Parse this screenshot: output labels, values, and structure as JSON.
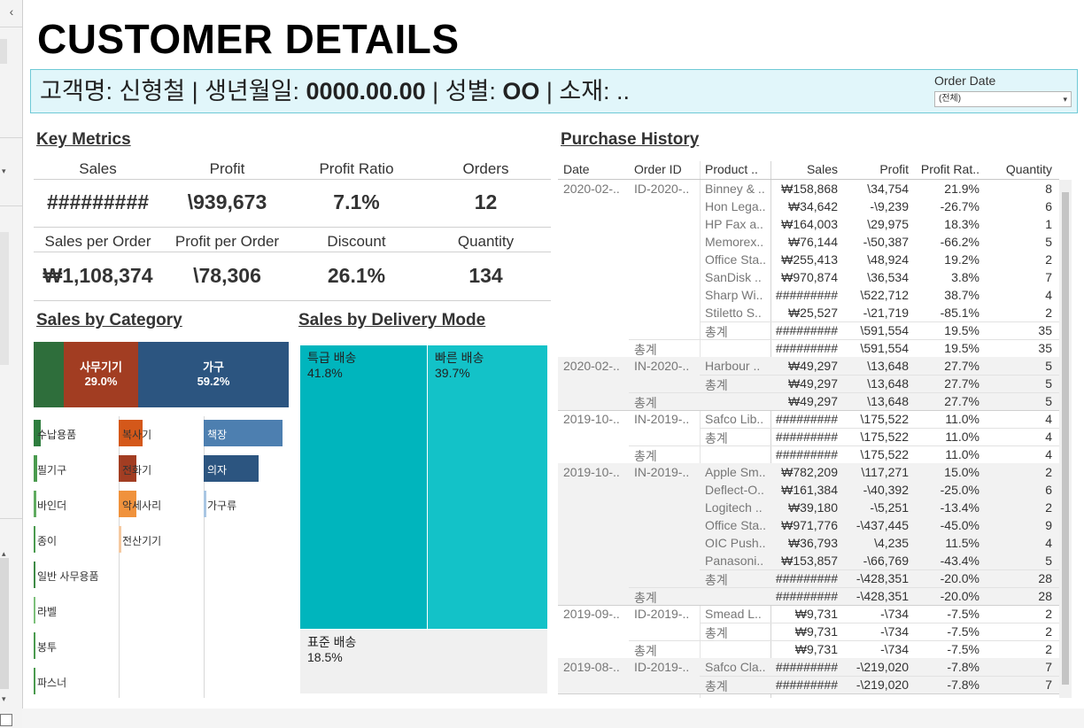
{
  "title": "CUSTOMER DETAILS",
  "customer": {
    "name_label": "고객명: ",
    "name_value": "신형철",
    "sep": " | ",
    "birth_label": "생년월일: ",
    "birth_value": "0000.00.00",
    "gender_label": "성별: ",
    "gender_value": "OO",
    "region_label": "소재: ..",
    "region_value": ""
  },
  "filter": {
    "label": "Order Date",
    "value": "(전체)",
    "arrow": "▾"
  },
  "key_metrics": {
    "heading": "Key Metrics",
    "row1": [
      {
        "label": "Sales",
        "value": "#########"
      },
      {
        "label": "Profit",
        "value": "\\939,673"
      },
      {
        "label": "Profit Ratio",
        "value": "7.1%"
      },
      {
        "label": "Orders",
        "value": "12"
      }
    ],
    "row2": [
      {
        "label": "Sales per Order",
        "value": "₩1,108,374"
      },
      {
        "label": "Profit per Order",
        "value": "\\78,306"
      },
      {
        "label": "Discount",
        "value": "26.1%"
      },
      {
        "label": "Quantity",
        "value": "134"
      }
    ]
  },
  "sales_by_category": {
    "heading": "Sales by Category",
    "colors": {
      "green": "#2e6e3b",
      "red": "#a23d22",
      "blue": "#2c5580"
    },
    "top": [
      {
        "name": "",
        "pct_label": "",
        "share": 0.118,
        "color": "#2e6e3b"
      },
      {
        "name": "사무기기",
        "pct_label": "29.0%",
        "share": 0.29,
        "color": "#a23d22"
      },
      {
        "name": "가구",
        "pct_label": "59.2%",
        "share": 0.592,
        "color": "#2c5580"
      }
    ],
    "columns": [
      [
        {
          "name": "수납용품",
          "share": 0.09,
          "color": "#2e7d3e"
        },
        {
          "name": "필기구",
          "share": 0.045,
          "color": "#4a9a4e"
        },
        {
          "name": "바인더",
          "share": 0.035,
          "color": "#5fab5f"
        },
        {
          "name": "종이",
          "share": 0.025,
          "color": "#4a9a4e"
        },
        {
          "name": "일반 사무용품",
          "share": 0.02,
          "color": "#3e8a45"
        },
        {
          "name": "라벨",
          "share": 0.015,
          "color": "#7cc07a"
        },
        {
          "name": "봉투",
          "share": 0.01,
          "color": "#4a9a4e"
        },
        {
          "name": "파스너",
          "share": 0.005,
          "color": "#4a9a4e"
        }
      ],
      [
        {
          "name": "복사기",
          "share": 0.3,
          "color": "#d4581a"
        },
        {
          "name": "전화기",
          "share": 0.22,
          "color": "#a23d22"
        },
        {
          "name": "악세사리",
          "share": 0.22,
          "color": "#f0923c"
        },
        {
          "name": "전산기기",
          "share": 0.03,
          "color": "#f5c9a0"
        }
      ],
      [
        {
          "name": "책장",
          "share": 0.98,
          "color": "#4d7fb0"
        },
        {
          "name": "의자",
          "share": 0.68,
          "color": "#2c5580"
        },
        {
          "name": "가구류",
          "share": 0.03,
          "color": "#a9c6e3"
        }
      ]
    ]
  },
  "sales_by_delivery": {
    "heading": "Sales by Delivery Mode",
    "modes": [
      {
        "name": "특급 배송",
        "pct": "41.8%",
        "color": "#00b5bd"
      },
      {
        "name": "빠른 배송",
        "pct": "39.7%",
        "color": "#13c2c8"
      },
      {
        "name": "표준 배송",
        "pct": "18.5%",
        "color": "#f0f0f0"
      }
    ]
  },
  "purchase_history": {
    "heading": "Purchase History",
    "columns": [
      "Date",
      "Order ID",
      "Product ..",
      "Sales",
      "Profit",
      "Profit Rat..",
      "Quantity"
    ],
    "total_label": "총계",
    "groups": [
      {
        "date": "2020-02-..",
        "order": "ID-2020-..",
        "rows": [
          [
            "Binney & ..",
            "₩158,868",
            "\\34,754",
            "21.9%",
            "8"
          ],
          [
            "Hon Lega..",
            "₩34,642",
            "-\\9,239",
            "-26.7%",
            "6"
          ],
          [
            "HP Fax a..",
            "₩164,003",
            "\\29,975",
            "18.3%",
            "1"
          ],
          [
            "Memorex..",
            "₩76,144",
            "-\\50,387",
            "-66.2%",
            "5"
          ],
          [
            "Office Sta..",
            "₩255,413",
            "\\48,924",
            "19.2%",
            "2"
          ],
          [
            "SanDisk ..",
            "₩970,874",
            "\\36,534",
            "3.8%",
            "7"
          ],
          [
            "Sharp Wi..",
            "#########",
            "\\522,712",
            "38.7%",
            "4"
          ],
          [
            "Stiletto S..",
            "₩25,527",
            "-\\21,719",
            "-85.1%",
            "2"
          ]
        ],
        "subtotal": [
          "#########",
          "\\591,554",
          "19.5%",
          "35"
        ],
        "total": [
          "#########",
          "\\591,554",
          "19.5%",
          "35"
        ]
      },
      {
        "date": "2020-02-..",
        "order": "IN-2020-..",
        "rows": [
          [
            "Harbour ..",
            "₩49,297",
            "\\13,648",
            "27.7%",
            "5"
          ]
        ],
        "subtotal": [
          "₩49,297",
          "\\13,648",
          "27.7%",
          "5"
        ],
        "total": [
          "₩49,297",
          "\\13,648",
          "27.7%",
          "5"
        ]
      },
      {
        "date": "2019-10-..",
        "order": "IN-2019-..",
        "rows": [
          [
            "Safco Lib..",
            "#########",
            "\\175,522",
            "11.0%",
            "4"
          ]
        ],
        "subtotal": [
          "#########",
          "\\175,522",
          "11.0%",
          "4"
        ],
        "total": [
          "#########",
          "\\175,522",
          "11.0%",
          "4"
        ]
      },
      {
        "date": "2019-10-..",
        "order": "IN-2019-..",
        "rows": [
          [
            "Apple Sm..",
            "₩782,209",
            "\\117,271",
            "15.0%",
            "2"
          ],
          [
            "Deflect-O..",
            "₩161,384",
            "-\\40,392",
            "-25.0%",
            "6"
          ],
          [
            "Logitech ..",
            "₩39,180",
            "-\\5,251",
            "-13.4%",
            "2"
          ],
          [
            "Office Sta..",
            "₩971,776",
            "-\\437,445",
            "-45.0%",
            "9"
          ],
          [
            "OIC Push..",
            "₩36,793",
            "\\4,235",
            "11.5%",
            "4"
          ],
          [
            "Panasoni..",
            "₩153,857",
            "-\\66,769",
            "-43.4%",
            "5"
          ]
        ],
        "subtotal": [
          "#########",
          "-\\428,351",
          "-20.0%",
          "28"
        ],
        "total": [
          "#########",
          "-\\428,351",
          "-20.0%",
          "28"
        ]
      },
      {
        "date": "2019-09-..",
        "order": "ID-2019-..",
        "rows": [
          [
            "Smead L..",
            "₩9,731",
            "-\\734",
            "-7.5%",
            "2"
          ]
        ],
        "subtotal": [
          "₩9,731",
          "-\\734",
          "-7.5%",
          "2"
        ],
        "total": [
          "₩9,731",
          "-\\734",
          "-7.5%",
          "2"
        ]
      },
      {
        "date": "2019-08-..",
        "order": "ID-2019-..",
        "rows": [
          [
            "Safco Cla..",
            "#########",
            "-\\219,020",
            "-7.8%",
            "7"
          ]
        ],
        "subtotal": [
          "#########",
          "-\\219,020",
          "-7.8%",
          "7"
        ]
      }
    ]
  },
  "side_panel": {
    "collapse_icon": "‹",
    "arrow_down": "▾",
    "arrow_up": "▴"
  }
}
